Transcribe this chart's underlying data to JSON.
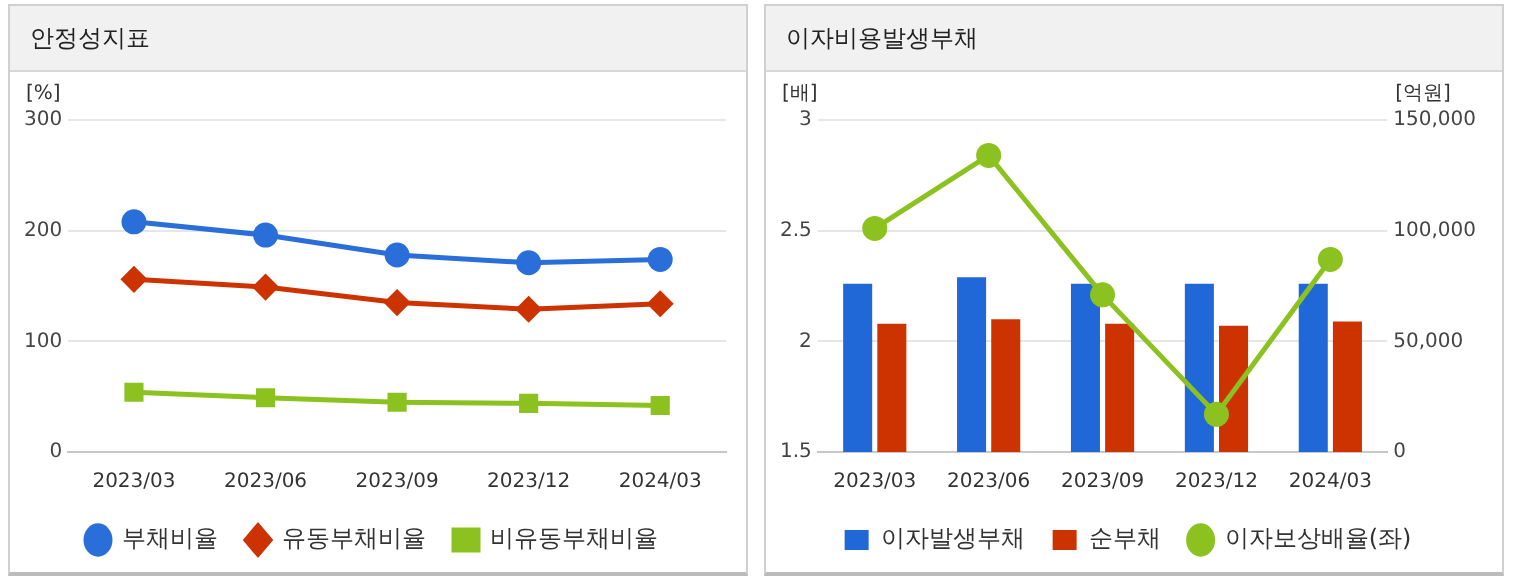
{
  "chart_data": [
    {
      "type": "line",
      "title": "안정성지표",
      "ylabel": "[%]",
      "categories": [
        "2023/03",
        "2023/06",
        "2023/09",
        "2023/12",
        "2024/03"
      ],
      "ylim": [
        0,
        300
      ],
      "yticks": [
        0,
        100,
        200,
        300
      ],
      "grid": "y",
      "legend": "bottom",
      "series": [
        {
          "name": "부채비율",
          "color": "#2a6fd9",
          "marker": "circle",
          "values": [
            208,
            196,
            178,
            171,
            174
          ]
        },
        {
          "name": "유동부채비율",
          "color": "#cc3300",
          "marker": "diamond",
          "values": [
            156,
            149,
            135,
            129,
            134
          ]
        },
        {
          "name": "비유동부채비율",
          "color": "#8cc21f",
          "marker": "square",
          "values": [
            54,
            49,
            45,
            44,
            42
          ]
        }
      ]
    },
    {
      "type": "bar",
      "title": "이자비용발생부채",
      "ylabel": "[배]",
      "y2label": "[억원]",
      "categories": [
        "2023/03",
        "2023/06",
        "2023/09",
        "2023/12",
        "2024/03"
      ],
      "ylim": [
        1.5,
        3
      ],
      "yticks": [
        1.5,
        2,
        2.5,
        3
      ],
      "y2lim": [
        0,
        150000
      ],
      "y2ticks": [
        {
          "value": 0,
          "label": "0"
        },
        {
          "value": 50000,
          "label": "50,000"
        },
        {
          "value": 100000,
          "label": "100,000"
        },
        {
          "value": 150000,
          "label": "150,000"
        }
      ],
      "grid": "y",
      "legend": "bottom",
      "series": [
        {
          "name": "이자발생부채",
          "color": "#2067d8",
          "axis": "y2",
          "values": [
            76000,
            79000,
            76000,
            76000,
            76000
          ]
        },
        {
          "name": "순부채",
          "color": "#cc3300",
          "axis": "y2",
          "values": [
            58000,
            60000,
            58000,
            57000,
            59000
          ]
        },
        {
          "name": "이자보상배율(좌)",
          "type": "line",
          "color": "#8cc21f",
          "marker": "circle",
          "values": [
            2.51,
            2.84,
            2.21,
            1.67,
            2.37
          ]
        }
      ]
    }
  ]
}
